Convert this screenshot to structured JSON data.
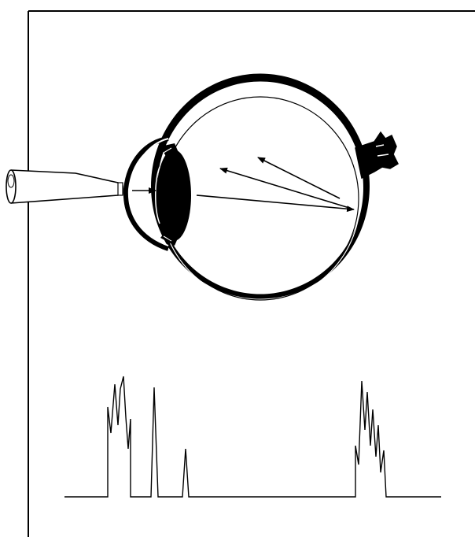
{
  "diagram": {
    "subject": "eye-cross-section-with-echo-trace",
    "colors": {
      "ink": "#000000",
      "background": "#ffffff"
    },
    "icons": [
      "probe-icon",
      "eyeball-icon",
      "lens-icon",
      "optic-nerve-icon"
    ],
    "arrows_count": 4,
    "trace_peaks_count": 4
  }
}
